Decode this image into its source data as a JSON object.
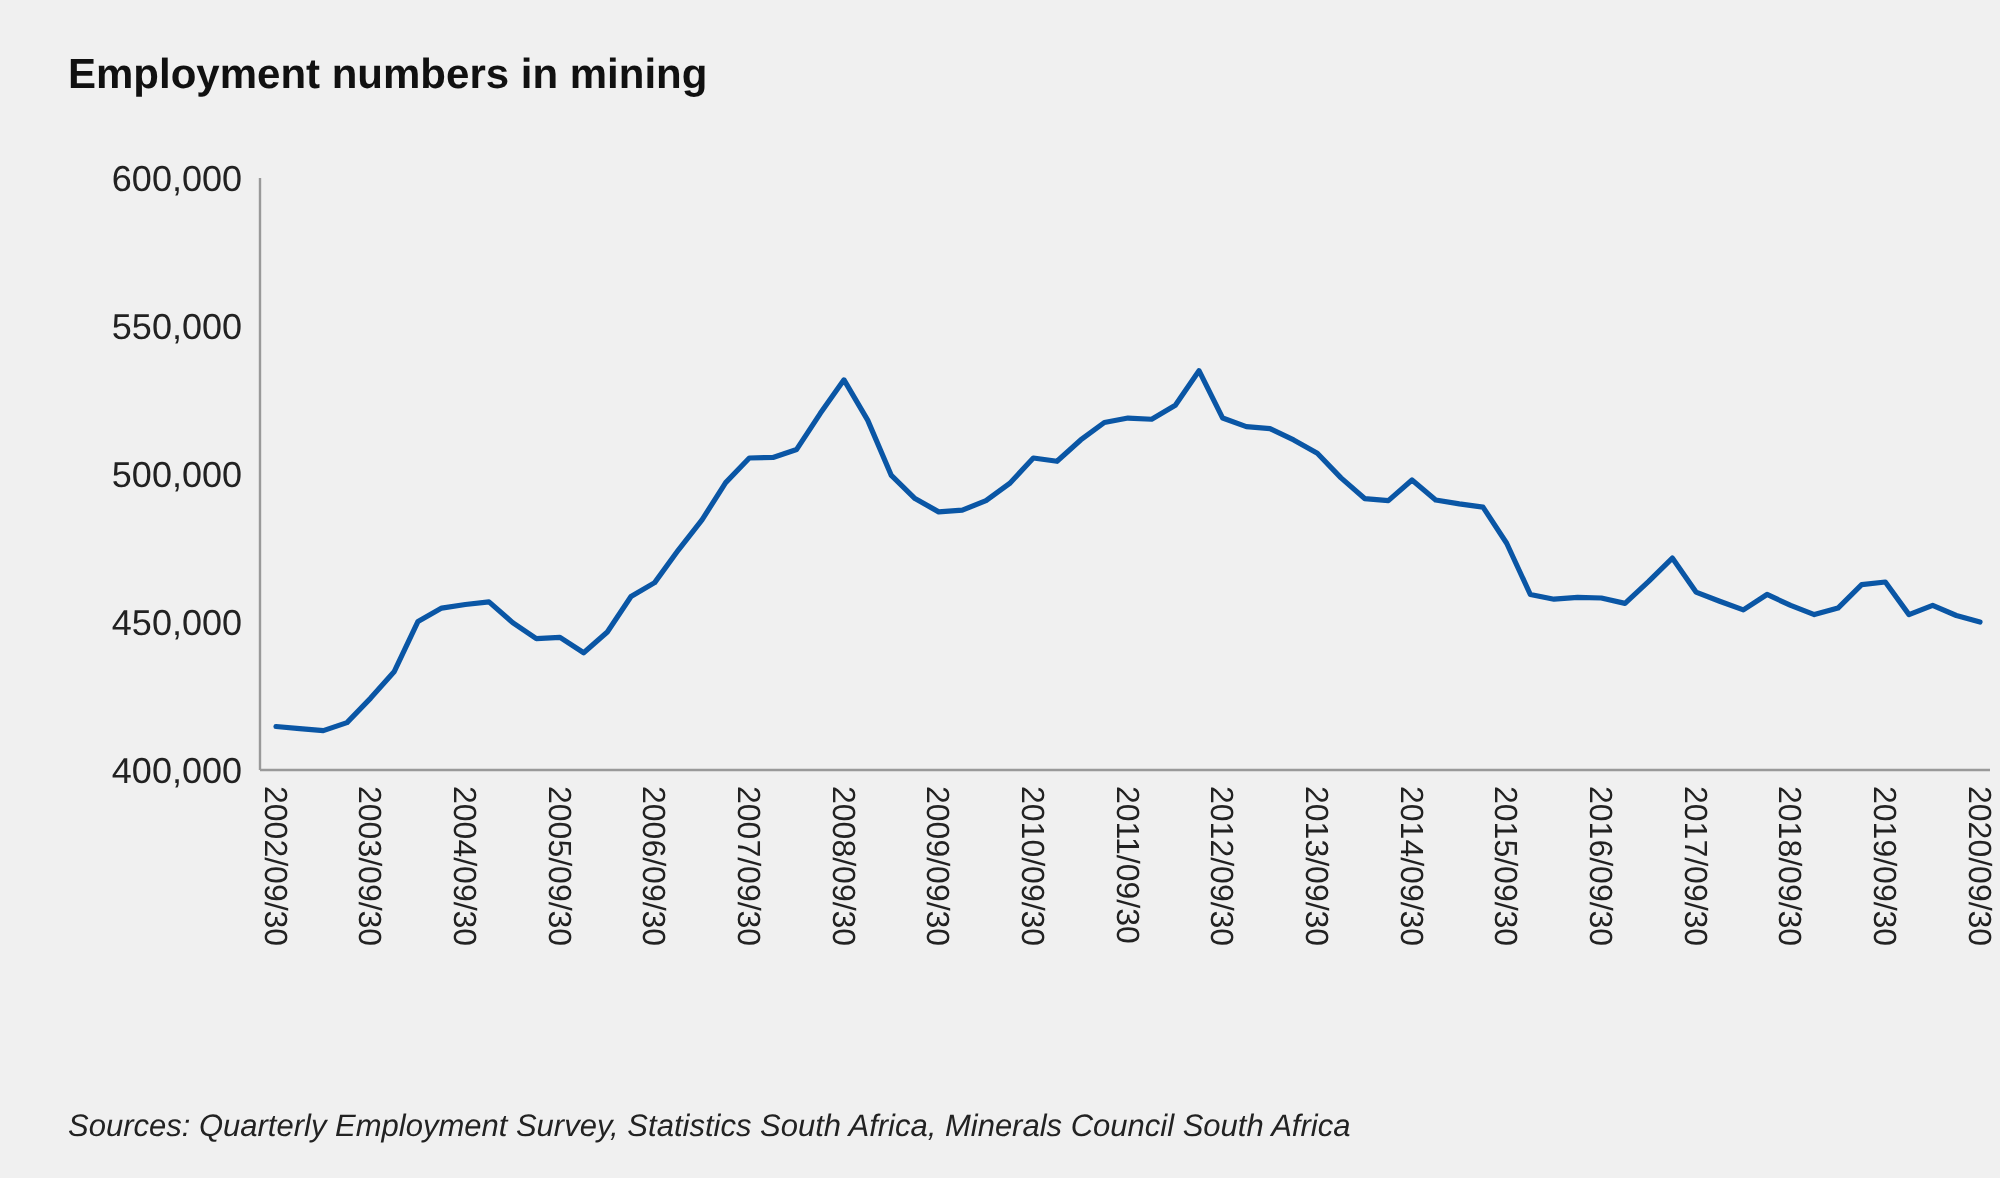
{
  "chart_data": {
    "type": "line",
    "title": "Employment numbers in mining",
    "categories": [
      "2002/09/30",
      null,
      null,
      null,
      "2003/09/30",
      null,
      null,
      null,
      "2004/09/30",
      null,
      null,
      null,
      "2005/09/30",
      null,
      null,
      null,
      "2006/09/30",
      null,
      null,
      null,
      "2007/09/30",
      null,
      null,
      null,
      "2008/09/30",
      null,
      null,
      null,
      "2009/09/30",
      null,
      null,
      null,
      "2010/09/30",
      null,
      null,
      null,
      "2011/09/30",
      null,
      null,
      null,
      "2012/09/30",
      null,
      null,
      null,
      "2013/09/30",
      null,
      null,
      null,
      "2014/09/30",
      null,
      null,
      null,
      "2015/09/30",
      null,
      null,
      null,
      "2016/09/30",
      null,
      null,
      null,
      "2017/09/30",
      null,
      null,
      null,
      "2018/09/30",
      null,
      null,
      null,
      "2019/09/30",
      null,
      null,
      null,
      "2020/09/30"
    ],
    "series": [
      {
        "color": "#0a56a5",
        "values": [
          414700,
          414000,
          413300,
          416000,
          424300,
          433300,
          450200,
          454700,
          455900,
          456800,
          449800,
          444400,
          444800,
          439600,
          446600,
          458600,
          463300,
          474300,
          484500,
          497100,
          505400,
          505600,
          508300,
          520500,
          531800,
          518200,
          499500,
          491700,
          487200,
          487800,
          491000,
          496800,
          505400,
          504300,
          511500,
          517400,
          518900,
          518500,
          523200,
          534900,
          518900,
          516000,
          515300,
          511500,
          507000,
          498700,
          491700,
          491000,
          498000,
          491200,
          489900,
          488800,
          476600,
          459300,
          457700,
          458300,
          458100,
          456300,
          463700,
          471600,
          460100,
          457000,
          454100,
          459300,
          455600,
          452500,
          454700,
          462600,
          463500,
          452500,
          455600,
          452200,
          450000
        ]
      }
    ],
    "ylim": [
      400000,
      600000
    ],
    "yticks": [
      {
        "value": 400000,
        "label": "400,000"
      },
      {
        "value": 450000,
        "label": "450,000"
      },
      {
        "value": 500000,
        "label": "500,000"
      },
      {
        "value": 550000,
        "label": "550,000"
      },
      {
        "value": 600000,
        "label": "600,000"
      }
    ],
    "grid": false,
    "marker": "none",
    "line_style": "solid",
    "annotations": [
      "Sources: Quarterly Employment Survey, Statistics South Africa, Minerals Council South Africa"
    ]
  }
}
